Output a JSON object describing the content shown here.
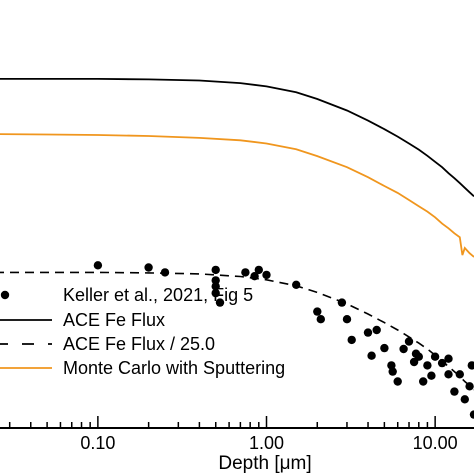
{
  "chart_data": {
    "type": "line",
    "xscale": "log",
    "yscale": "log",
    "xlabel": "Depth [μm]",
    "ylabel": "",
    "xlim": [
      0.02,
      17
    ],
    "ylim": [
      180000.0,
      160000000.0
    ],
    "xticks": [
      {
        "value": 0.1,
        "label": "0.10"
      },
      {
        "value": 1.0,
        "label": "1.00"
      },
      {
        "value": 10.0,
        "label": "10.00"
      }
    ],
    "series": [
      {
        "name": "ACE Fe Flux",
        "style": "solid",
        "color": "#000000",
        "x": [
          0.02,
          0.05,
          0.1,
          0.2,
          0.4,
          0.7,
          1.0,
          1.5,
          2.0,
          3.0,
          4.0,
          5.0,
          6.0,
          7.0,
          8.0,
          9.0,
          10.0,
          11.0,
          12.0,
          13.0,
          14.0,
          15.0,
          16.0,
          17.0
        ],
        "y": [
          60000000.0,
          60000000.0,
          60000000.0,
          59500000.0,
          58500000.0,
          56000000.0,
          53000000.0,
          48000000.0,
          43000000.0,
          35500000.0,
          30000000.0,
          26000000.0,
          23000000.0,
          20500000.0,
          18500000.0,
          16700000.0,
          15100000.0,
          13800000.0,
          12500000.0,
          11500000.0,
          10600000.0,
          9800000.0,
          9100000.0,
          8500000.0
        ]
      },
      {
        "name": "ACE Fe Flux / 25.0",
        "style": "dashed",
        "color": "#000000",
        "x": [
          0.02,
          0.05,
          0.1,
          0.2,
          0.4,
          0.7,
          1.0,
          1.5,
          2.0,
          3.0,
          4.0,
          5.0,
          6.0,
          7.0,
          8.0,
          9.0,
          10.0,
          11.0,
          12.0,
          13.0,
          14.0,
          15.0,
          16.0,
          17.0
        ],
        "y": [
          2400000.0,
          2400000.0,
          2400000.0,
          2380000.0,
          2340000.0,
          2240000.0,
          2120000.0,
          1920000.0,
          1720000.0,
          1420000.0,
          1200000.0,
          1040000.0,
          920000.0,
          820000.0,
          740000.0,
          670000.0,
          605000.0,
          550000.0,
          500000.0,
          460000.0,
          425000.0,
          390000.0,
          365000.0,
          340000.0
        ]
      },
      {
        "name": "Monte Carlo with Sputtering",
        "style": "solid",
        "color": "#f0961e",
        "x": [
          0.02,
          0.05,
          0.1,
          0.2,
          0.4,
          0.7,
          1.0,
          1.5,
          2.0,
          3.0,
          4.0,
          5.0,
          6.0,
          7.0,
          8.0,
          9.0,
          10.0,
          11.0,
          12.0,
          13.0,
          14.0,
          14.5,
          15.0,
          16.0,
          17.0
        ],
        "y": [
          24000000.0,
          23800000.0,
          23600000.0,
          23200000.0,
          22500000.0,
          21600000.0,
          20500000.0,
          18600000.0,
          16600000.0,
          13800000.0,
          11700000.0,
          10100000.0,
          9000000.0,
          8000000.0,
          7200000.0,
          6600000.0,
          6000000.0,
          5400000.0,
          5000000.0,
          4600000.0,
          4300000.0,
          3200000.0,
          3600000.0,
          3300000.0,
          3100000.0
        ]
      },
      {
        "name": "Keller et al., 2021, Fig 5",
        "style": "points",
        "color": "#000000",
        "x": [
          0.1,
          0.2,
          0.25,
          0.5,
          0.5,
          0.5,
          0.5,
          0.53,
          0.75,
          0.85,
          0.9,
          1.0,
          1.5,
          2.0,
          2.1,
          2.8,
          3.0,
          3.2,
          4.0,
          4.2,
          4.5,
          5.0,
          5.5,
          5.6,
          6.0,
          6.5,
          7.0,
          7.5,
          7.7,
          8.0,
          8.5,
          9.0,
          9.5,
          10.0,
          11.0,
          12.0,
          12.0,
          13.0,
          14.0,
          15.0,
          16.0,
          16.5,
          17.0
        ],
        "y": [
          2700000.0,
          2600000.0,
          2400000.0,
          2500000.0,
          2100000.0,
          1900000.0,
          1700000.0,
          1450000.0,
          2400000.0,
          2250000.0,
          2500000.0,
          2300000.0,
          1950000.0,
          1250000.0,
          1100000.0,
          1450000.0,
          1100000.0,
          780000.0,
          880000.0,
          600000.0,
          920000.0,
          680000.0,
          510000.0,
          460000.0,
          390000.0,
          670000.0,
          760000.0,
          540000.0,
          620000.0,
          590000.0,
          390000.0,
          510000.0,
          430000.0,
          590000.0,
          530000.0,
          440000.0,
          570000.0,
          330000.0,
          440000.0,
          290000.0,
          360000.0,
          510000.0,
          225000.0
        ]
      }
    ],
    "legend": {
      "placement": "bottom-left",
      "entries": [
        {
          "label": "Keller et al., 2021, Fig 5",
          "style": "points",
          "color": "#000000"
        },
        {
          "label": "ACE Fe Flux",
          "style": "solid",
          "color": "#000000"
        },
        {
          "label": "ACE Fe Flux / 25.0",
          "style": "dashed",
          "color": "#000000"
        },
        {
          "label": "Monte Carlo with Sputtering",
          "style": "solid",
          "color": "#f0961e"
        }
      ]
    }
  }
}
